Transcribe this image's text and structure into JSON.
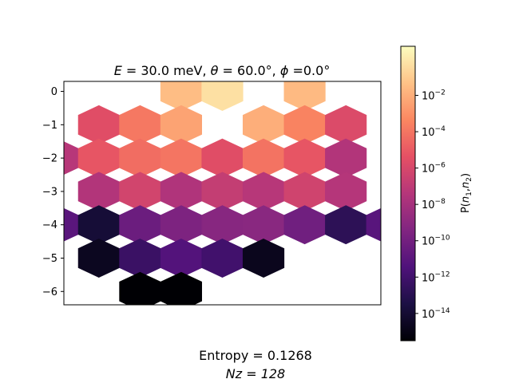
{
  "chart_data": {
    "type": "heatmap",
    "title": {
      "e_label": "E",
      "e_text": " = 30.0 meV, ",
      "theta_label": "θ",
      "theta_text": " = 60.0°, ",
      "phi_label": "ϕ",
      "phi_text": " =0.0°"
    },
    "colorbar": {
      "label_main": "P(",
      "label_n": "n",
      "label_sub1": "1",
      "label_comma": ",",
      "label_sub2": "2",
      "label_close": ")",
      "scale": "log",
      "vmin_exp": -15.5,
      "vmax_exp": 0.7,
      "colormap": "magma",
      "ticks": [
        {
          "base": "10",
          "exp": "−2",
          "exponent": -2
        },
        {
          "base": "10",
          "exp": "−4",
          "exponent": -4
        },
        {
          "base": "10",
          "exp": "−6",
          "exponent": -6
        },
        {
          "base": "10",
          "exp": "−8",
          "exponent": -8
        },
        {
          "base": "10",
          "exp": "−10",
          "exponent": -10
        },
        {
          "base": "10",
          "exp": "−12",
          "exponent": -12
        },
        {
          "base": "10",
          "exp": "−14",
          "exponent": -14
        }
      ]
    },
    "yaxis": {
      "ylim": [
        -6.4,
        0.3
      ],
      "ticks": [
        {
          "label": "0",
          "value": 0
        },
        {
          "label": "−1",
          "value": -1
        },
        {
          "label": "−2",
          "value": -2
        },
        {
          "label": "−3",
          "value": -3
        },
        {
          "label": "−4",
          "value": -4
        },
        {
          "label": "−5",
          "value": -5
        },
        {
          "label": "−6",
          "value": -6
        }
      ]
    },
    "xaxis": {
      "xlim": [
        -3.85,
        3.85
      ],
      "ticks_visible": false
    },
    "cells": [
      {
        "x": -1,
        "y": 0,
        "log10p": -1.5
      },
      {
        "x": 0,
        "y": 0,
        "log10p": -0.3
      },
      {
        "x": 2,
        "y": 0,
        "log10p": -1.6
      },
      {
        "x": -3,
        "y": -1,
        "log10p": -5.6
      },
      {
        "x": -2,
        "y": -1,
        "log10p": -3.9
      },
      {
        "x": -1,
        "y": -1,
        "log10p": -2.4
      },
      {
        "x": 1,
        "y": -1,
        "log10p": -2.0
      },
      {
        "x": 2,
        "y": -1,
        "log10p": -3.5
      },
      {
        "x": 3,
        "y": -1,
        "log10p": -5.8
      },
      {
        "x": -4,
        "y": -2,
        "log10p": -7.3
      },
      {
        "x": -3,
        "y": -2,
        "log10p": -5.2
      },
      {
        "x": -2,
        "y": -2,
        "log10p": -4.3
      },
      {
        "x": -1,
        "y": -2,
        "log10p": -4.0
      },
      {
        "x": 0,
        "y": -2,
        "log10p": -5.6
      },
      {
        "x": 1,
        "y": -2,
        "log10p": -4.1
      },
      {
        "x": 2,
        "y": -2,
        "log10p": -5.2
      },
      {
        "x": 3,
        "y": -2,
        "log10p": -7.5
      },
      {
        "x": -3,
        "y": -3,
        "log10p": -7.5
      },
      {
        "x": -2,
        "y": -3,
        "log10p": -6.2
      },
      {
        "x": -1,
        "y": -3,
        "log10p": -7.6
      },
      {
        "x": 0,
        "y": -3,
        "log10p": -6.8
      },
      {
        "x": 1,
        "y": -3,
        "log10p": -7.3
      },
      {
        "x": 2,
        "y": -3,
        "log10p": -6.3
      },
      {
        "x": 3,
        "y": -3,
        "log10p": -7.4
      },
      {
        "x": -4,
        "y": -4,
        "log10p": -11.0
      },
      {
        "x": -3,
        "y": -4,
        "log10p": -13.9
      },
      {
        "x": -2,
        "y": -4,
        "log10p": -10.3
      },
      {
        "x": -1,
        "y": -4,
        "log10p": -9.6
      },
      {
        "x": 0,
        "y": -4,
        "log10p": -9.2
      },
      {
        "x": 1,
        "y": -4,
        "log10p": -9.1
      },
      {
        "x": 2,
        "y": -4,
        "log10p": -10.1
      },
      {
        "x": 3,
        "y": -4,
        "log10p": -12.8
      },
      {
        "x": 4,
        "y": -4,
        "log10p": -11.1
      },
      {
        "x": -3,
        "y": -5,
        "log10p": -14.6
      },
      {
        "x": -2,
        "y": -5,
        "log10p": -12.3
      },
      {
        "x": -1,
        "y": -5,
        "log10p": -11.3
      },
      {
        "x": 0,
        "y": -5,
        "log10p": -12.0
      },
      {
        "x": 1,
        "y": -5,
        "log10p": -14.7
      },
      {
        "x": -2,
        "y": -6,
        "log10p": -15.5
      },
      {
        "x": -1,
        "y": -6,
        "log10p": -15.5
      }
    ]
  },
  "footer": {
    "entropy": "Entropy = 0.1268",
    "nz": "Nz = 128"
  }
}
